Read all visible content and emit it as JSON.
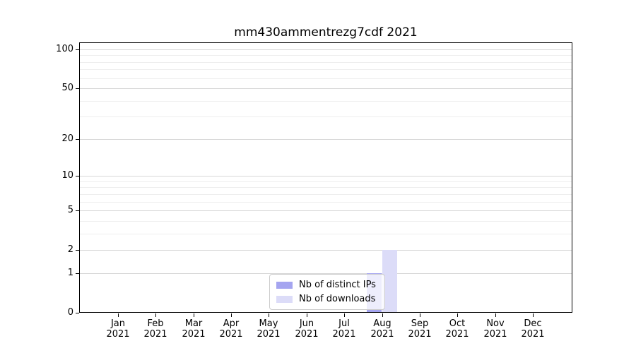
{
  "figure": {
    "background": "#ffffff"
  },
  "chart_data": {
    "type": "bar",
    "title": "mm430ammentrezg7cdf 2021",
    "categories": [
      "Jan 2021",
      "Feb 2021",
      "Mar 2021",
      "Apr 2021",
      "May 2021",
      "Jun 2021",
      "Jul 2021",
      "Aug 2021",
      "Sep 2021",
      "Oct 2021",
      "Nov 2021",
      "Dec 2021"
    ],
    "series": [
      {
        "name": "Nb of distinct IPs",
        "color": "#a5a5f0",
        "values": [
          0,
          0,
          0,
          0,
          0,
          0,
          0,
          1,
          0,
          0,
          0,
          0
        ]
      },
      {
        "name": "Nb of downloads",
        "color": "#dcdcf8",
        "values": [
          0,
          0,
          0,
          0,
          0,
          0,
          0,
          2,
          0,
          0,
          0,
          0
        ]
      }
    ],
    "xlabel": "",
    "ylabel": "",
    "yscale": "log1p",
    "ylim": [
      0,
      113
    ],
    "yticks": [
      0,
      1,
      2,
      5,
      10,
      20,
      50,
      100
    ],
    "yticks_minor": [
      3,
      4,
      6,
      7,
      8,
      9,
      30,
      40,
      60,
      70,
      80,
      90
    ],
    "grid": "horizontal-major-and-minor",
    "legend_position": "lower center",
    "bar_width_fraction": 0.4,
    "bar_offset_fraction": 0.2
  },
  "style": {
    "grid_major_color": "#d6d6d6",
    "grid_minor_color": "#eeeeee",
    "axis_color": "#000000",
    "text_color": "#000000",
    "legend_border_color": "#cccccc",
    "legend_background": "rgba(255,255,255,0.8)"
  }
}
